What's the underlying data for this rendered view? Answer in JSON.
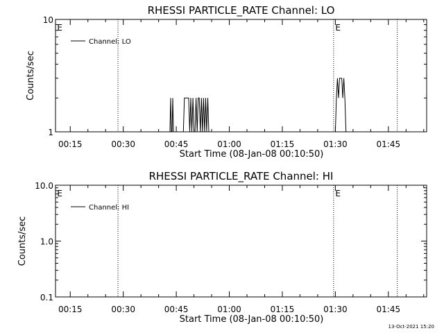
{
  "footer": {
    "timestamp": "13-Oct-2021 15:20"
  },
  "chart_data": [
    {
      "type": "line",
      "title": "RHESSI PARTICLE_RATE Channel: LO",
      "xlabel": "Start Time (08-Jan-08 00:10:50)",
      "ylabel": "Counts/sec",
      "y_scale": "log",
      "ylim": [
        1,
        10
      ],
      "yticks": [
        {
          "value": 1,
          "label": "1"
        },
        {
          "value": 10,
          "label": "10"
        }
      ],
      "xlim_minutes": [
        10.83,
        115.83
      ],
      "xticks": [
        {
          "minutes": 15,
          "label": "00:15"
        },
        {
          "minutes": 30,
          "label": "00:30"
        },
        {
          "minutes": 45,
          "label": "00:45"
        },
        {
          "minutes": 60,
          "label": "01:00"
        },
        {
          "minutes": 75,
          "label": "01:15"
        },
        {
          "minutes": 90,
          "label": "01:30"
        },
        {
          "minutes": 105,
          "label": "01:45"
        }
      ],
      "vlines_minutes": [
        28.5,
        89.5,
        107.5
      ],
      "eclipse_marks": [
        {
          "minutes": 11.3,
          "label": "E"
        },
        {
          "minutes": 90.0,
          "label": "E"
        }
      ],
      "legend": {
        "label": "Channel: LO",
        "placement": "top-left"
      },
      "series": [
        {
          "name": "Channel: LO",
          "x_minutes": [
            43.2,
            43.4,
            43.6,
            43.8,
            44.0,
            44.2,
            47.0,
            47.3,
            47.6,
            47.9,
            48.2,
            48.5,
            48.8,
            49.1,
            49.4,
            49.7,
            50.0,
            50.3,
            50.6,
            50.9,
            51.2,
            51.5,
            51.8,
            52.1,
            52.4,
            52.7,
            53.0,
            53.3,
            53.6,
            53.9,
            54.2,
            54.5,
            90.0,
            90.3,
            90.6,
            90.9,
            91.2,
            91.5,
            91.8,
            92.1,
            92.4,
            92.7,
            93.0,
            93.3,
            93.6
          ],
          "y": [
            1,
            2,
            1,
            1,
            2,
            1,
            1,
            2,
            2,
            2,
            2,
            2,
            1,
            2,
            1,
            2,
            1,
            1,
            2,
            1,
            2,
            2,
            1,
            2,
            1,
            2,
            1,
            2,
            1,
            2,
            1,
            1,
            1,
            2,
            3,
            2,
            3,
            3,
            3,
            2,
            3,
            2,
            1,
            1,
            1
          ]
        }
      ]
    },
    {
      "type": "line",
      "title": "RHESSI PARTICLE_RATE Channel: HI",
      "xlabel": "Start Time (08-Jan-08 00:10:50)",
      "ylabel": "Counts/sec",
      "y_scale": "log",
      "ylim": [
        0.1,
        10
      ],
      "yticks": [
        {
          "value": 0.1,
          "label": "0.1"
        },
        {
          "value": 1,
          "label": "1.0"
        },
        {
          "value": 10,
          "label": "10.0"
        }
      ],
      "xlim_minutes": [
        10.83,
        115.83
      ],
      "xticks": [
        {
          "minutes": 15,
          "label": "00:15"
        },
        {
          "minutes": 30,
          "label": "00:30"
        },
        {
          "minutes": 45,
          "label": "00:45"
        },
        {
          "minutes": 60,
          "label": "01:00"
        },
        {
          "minutes": 75,
          "label": "01:15"
        },
        {
          "minutes": 90,
          "label": "01:30"
        },
        {
          "minutes": 105,
          "label": "01:45"
        }
      ],
      "vlines_minutes": [
        28.5,
        89.5,
        107.5
      ],
      "eclipse_marks": [
        {
          "minutes": 11.3,
          "label": "E"
        },
        {
          "minutes": 90.0,
          "label": "E"
        }
      ],
      "legend": {
        "label": "Channel: HI",
        "placement": "top-left"
      },
      "series": [
        {
          "name": "Channel: HI",
          "x_minutes": [],
          "y": []
        }
      ]
    }
  ]
}
